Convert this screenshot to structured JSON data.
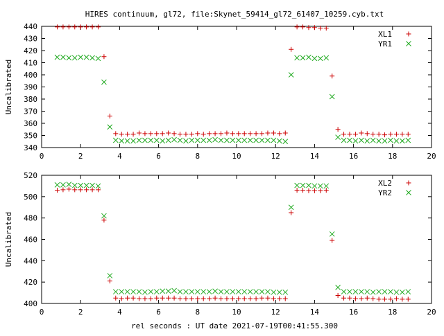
{
  "title": "HIRES continuum, gl72, file:Skynet_59414_gl72_61407_10259.cyb.txt",
  "xlabel": "rel seconds : UT date 2021-07-19T00:41:55.300",
  "colors": {
    "series1": "#cc0000",
    "series2": "#22aa22",
    "axis": "#000000"
  },
  "chart_data": [
    {
      "type": "scatter",
      "ylabel": "Uncalibrated",
      "xlim": [
        0,
        20
      ],
      "ylim": [
        340,
        440
      ],
      "xticks": [
        0,
        2,
        4,
        6,
        8,
        10,
        12,
        14,
        16,
        18,
        20
      ],
      "yticks": [
        340,
        350,
        360,
        370,
        380,
        390,
        400,
        410,
        420,
        430,
        440
      ],
      "legend_position": "top-right",
      "grid": false,
      "series": [
        {
          "name": "XL1",
          "marker": "plus",
          "color": "#cc0000",
          "x": [
            0.8,
            1.1,
            1.4,
            1.7,
            2.0,
            2.3,
            2.6,
            2.9,
            3.2,
            3.5,
            3.8,
            4.1,
            4.4,
            4.7,
            5.0,
            5.3,
            5.6,
            5.9,
            6.2,
            6.5,
            6.8,
            7.1,
            7.4,
            7.7,
            8.0,
            8.3,
            8.6,
            8.9,
            9.2,
            9.5,
            9.8,
            10.1,
            10.4,
            10.7,
            11.0,
            11.3,
            11.6,
            11.9,
            12.2,
            12.5,
            12.8,
            13.1,
            13.4,
            13.7,
            14.0,
            14.3,
            14.6,
            14.9,
            15.2,
            15.5,
            15.8,
            16.1,
            16.4,
            16.7,
            17.0,
            17.3,
            17.6,
            17.9,
            18.2,
            18.5,
            18.8
          ],
          "y": [
            439.5,
            439.5,
            439.5,
            439.5,
            439.5,
            439.5,
            439.5,
            439.5,
            415,
            366,
            351.5,
            351,
            351,
            351,
            352,
            351.5,
            351.5,
            351.5,
            351.5,
            352,
            351.5,
            351,
            351,
            351,
            351.5,
            351,
            351.5,
            351.5,
            351.5,
            352,
            351.5,
            351.5,
            351.5,
            351.5,
            351.5,
            351.5,
            352,
            352,
            351.5,
            352,
            421,
            439.5,
            439.5,
            439,
            439,
            438.5,
            438.5,
            399,
            355,
            351,
            351,
            351,
            352,
            351.5,
            351,
            351,
            350.5,
            351,
            351,
            351,
            351
          ]
        },
        {
          "name": "YR1",
          "marker": "cross",
          "color": "#22aa22",
          "x": [
            0.8,
            1.1,
            1.4,
            1.7,
            2.0,
            2.3,
            2.6,
            2.9,
            3.2,
            3.5,
            3.8,
            4.1,
            4.4,
            4.7,
            5.0,
            5.3,
            5.6,
            5.9,
            6.2,
            6.5,
            6.8,
            7.1,
            7.4,
            7.7,
            8.0,
            8.3,
            8.6,
            8.9,
            9.2,
            9.5,
            9.8,
            10.1,
            10.4,
            10.7,
            11.0,
            11.3,
            11.6,
            11.9,
            12.2,
            12.5,
            12.8,
            13.1,
            13.4,
            13.7,
            14.0,
            14.3,
            14.6,
            14.9,
            15.2,
            15.5,
            15.8,
            16.1,
            16.4,
            16.7,
            17.0,
            17.3,
            17.6,
            17.9,
            18.2,
            18.5,
            18.8
          ],
          "y": [
            414.5,
            414.5,
            414,
            414,
            414.5,
            414.5,
            414,
            413.5,
            394,
            357,
            346,
            345.5,
            345.5,
            345.5,
            346,
            346,
            346,
            346,
            345.5,
            346,
            346.5,
            346,
            345.5,
            346,
            346,
            346,
            346,
            346.5,
            346,
            346,
            346,
            346,
            346,
            346,
            346,
            346,
            346,
            346,
            345.5,
            345,
            400,
            414,
            414,
            414.5,
            413.5,
            413.5,
            414,
            382,
            348.5,
            346,
            346,
            345.5,
            346,
            345.5,
            346,
            345.5,
            345.5,
            346,
            345.5,
            345.5,
            346
          ]
        }
      ]
    },
    {
      "type": "scatter",
      "ylabel": "Uncalibrated",
      "xlim": [
        0,
        20
      ],
      "ylim": [
        400,
        520
      ],
      "xticks": [
        0,
        2,
        4,
        6,
        8,
        10,
        12,
        14,
        16,
        18,
        20
      ],
      "yticks": [
        400,
        420,
        440,
        460,
        480,
        500,
        520
      ],
      "legend_position": "top-right",
      "grid": false,
      "series": [
        {
          "name": "XL2",
          "marker": "plus",
          "color": "#cc0000",
          "x": [
            0.8,
            1.1,
            1.4,
            1.7,
            2.0,
            2.3,
            2.6,
            2.9,
            3.2,
            3.5,
            3.8,
            4.1,
            4.4,
            4.7,
            5.0,
            5.3,
            5.6,
            5.9,
            6.2,
            6.5,
            6.8,
            7.1,
            7.4,
            7.7,
            8.0,
            8.3,
            8.6,
            8.9,
            9.2,
            9.5,
            9.8,
            10.1,
            10.4,
            10.7,
            11.0,
            11.3,
            11.6,
            11.9,
            12.2,
            12.5,
            12.8,
            13.1,
            13.4,
            13.7,
            14.0,
            14.3,
            14.6,
            14.9,
            15.2,
            15.5,
            15.8,
            16.1,
            16.4,
            16.7,
            17.0,
            17.3,
            17.6,
            17.9,
            18.2,
            18.5,
            18.8
          ],
          "y": [
            506,
            506.5,
            507,
            506.5,
            506.5,
            506.5,
            506.5,
            506.5,
            478,
            421,
            405,
            404.5,
            405,
            405,
            404.5,
            404.5,
            404.5,
            405,
            405,
            405,
            405,
            404.5,
            404.5,
            404.5,
            404.5,
            404.5,
            404.5,
            405,
            404.5,
            404.5,
            404.5,
            404.5,
            404.5,
            404.5,
            404.5,
            405,
            405,
            404.5,
            404.5,
            404.5,
            485,
            506,
            506,
            505.5,
            505.5,
            505.5,
            506,
            459,
            407.5,
            405,
            405,
            404.5,
            404.5,
            405,
            404.5,
            404,
            404,
            404,
            404.5,
            404,
            404
          ]
        },
        {
          "name": "YR2",
          "marker": "cross",
          "color": "#22aa22",
          "x": [
            0.8,
            1.1,
            1.4,
            1.7,
            2.0,
            2.3,
            2.6,
            2.9,
            3.2,
            3.5,
            3.8,
            4.1,
            4.4,
            4.7,
            5.0,
            5.3,
            5.6,
            5.9,
            6.2,
            6.5,
            6.8,
            7.1,
            7.4,
            7.7,
            8.0,
            8.3,
            8.6,
            8.9,
            9.2,
            9.5,
            9.8,
            10.1,
            10.4,
            10.7,
            11.0,
            11.3,
            11.6,
            11.9,
            12.2,
            12.5,
            12.8,
            13.1,
            13.4,
            13.7,
            14.0,
            14.3,
            14.6,
            14.9,
            15.2,
            15.5,
            15.8,
            16.1,
            16.4,
            16.7,
            17.0,
            17.3,
            17.6,
            17.9,
            18.2,
            18.5,
            18.8
          ],
          "y": [
            511,
            511,
            511.5,
            510.5,
            510.5,
            510.5,
            510.5,
            510,
            482,
            426,
            411,
            411,
            411,
            411,
            411,
            410.5,
            411,
            411,
            411.5,
            411.5,
            412,
            411,
            411,
            411,
            411,
            411,
            411,
            411.5,
            411,
            411,
            411,
            411,
            411,
            411,
            411,
            411,
            411,
            410.5,
            410.5,
            410.5,
            490,
            510.5,
            510.5,
            510.5,
            510,
            510,
            510,
            465,
            415,
            411,
            411,
            411,
            411,
            411,
            410.5,
            411,
            411,
            411,
            410.5,
            410.5,
            411
          ]
        }
      ]
    }
  ]
}
